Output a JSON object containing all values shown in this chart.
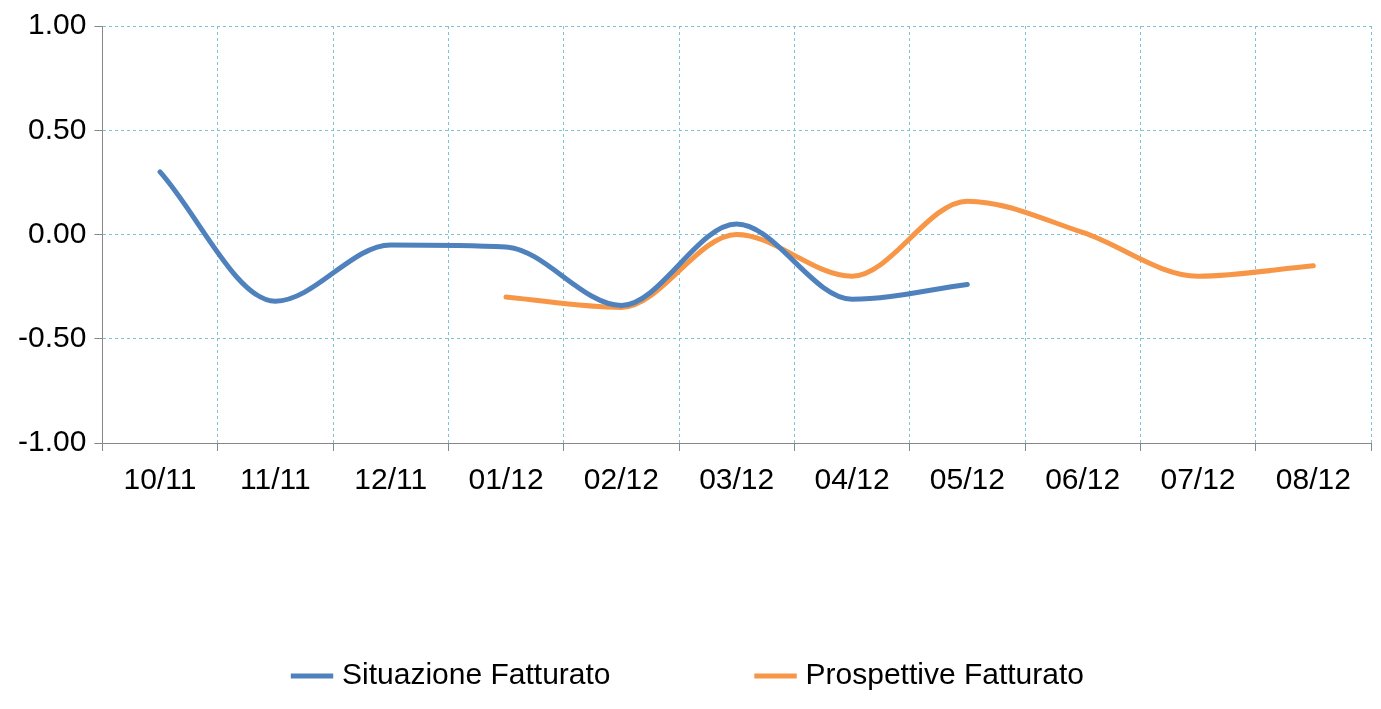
{
  "chart_data": {
    "type": "line",
    "categories": [
      "10/11",
      "11/11",
      "12/11",
      "01/12",
      "02/12",
      "03/12",
      "04/12",
      "05/12",
      "06/12",
      "07/12",
      "08/12"
    ],
    "series": [
      {
        "name": "Situazione Fatturato",
        "color": "#4f81bd",
        "values": [
          0.3,
          -0.32,
          -0.05,
          -0.06,
          -0.34,
          0.05,
          -0.31,
          -0.24,
          null,
          null,
          null
        ]
      },
      {
        "name": "Prospettive Fatturato",
        "color": "#f79646",
        "values": [
          null,
          null,
          null,
          -0.3,
          -0.35,
          0.0,
          -0.2,
          0.16,
          0.01,
          -0.2,
          -0.15
        ]
      }
    ],
    "ylim": [
      -1,
      1
    ],
    "yticks": [
      {
        "value": -1,
        "label": "-1.00"
      },
      {
        "value": -0.5,
        "label": "-0.50"
      },
      {
        "value": 0,
        "label": "0.00"
      },
      {
        "value": 0.5,
        "label": "0.50"
      },
      {
        "value": 1,
        "label": "1.00"
      }
    ],
    "grid": true,
    "legend": "bottom",
    "marker": "none",
    "line_style": "solid"
  }
}
